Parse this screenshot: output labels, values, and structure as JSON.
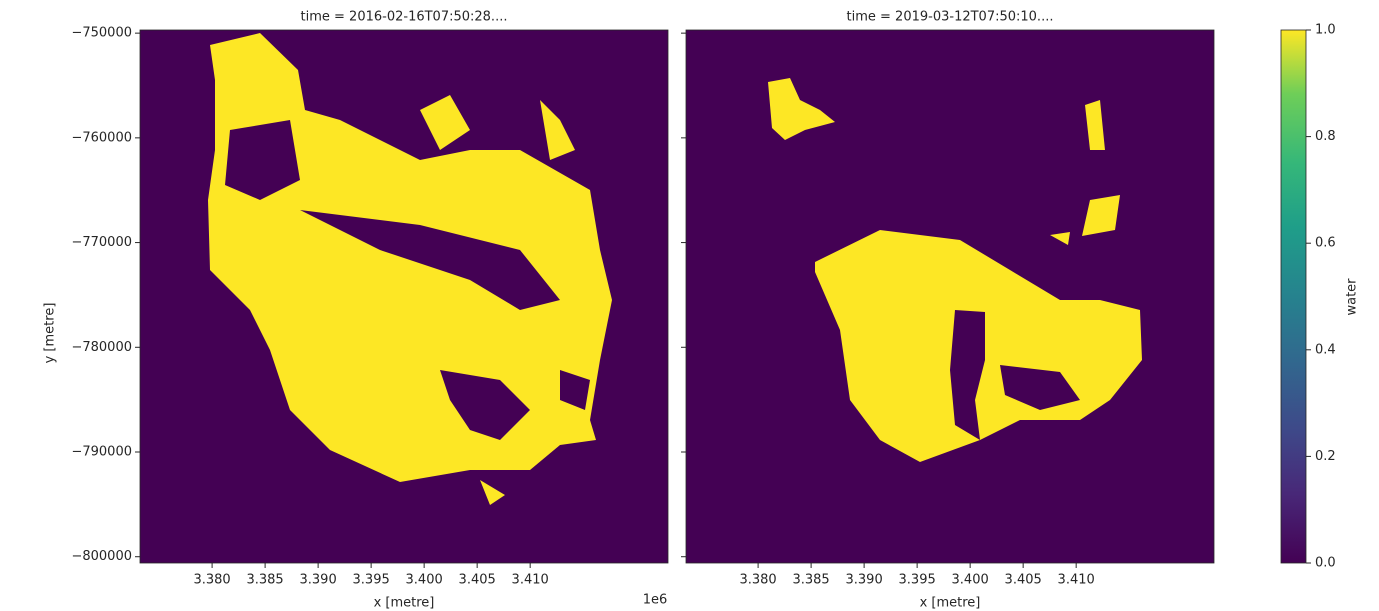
{
  "chart_data": [
    {
      "type": "image",
      "title": "time = 2016-02-16T07:50:28....",
      "xlabel": "x [metre]",
      "ylabel": "y [metre]",
      "x_offset_label": "1e6",
      "xlim": [
        3.3732,
        3.423
      ],
      "ylim": [
        -800600,
        -749700
      ],
      "xticks": [
        {
          "value": 3.38,
          "label": "3.380"
        },
        {
          "value": 3.385,
          "label": "3.385"
        },
        {
          "value": 3.39,
          "label": "3.390"
        },
        {
          "value": 3.395,
          "label": "3.395"
        },
        {
          "value": 3.4,
          "label": "3.400"
        },
        {
          "value": 3.405,
          "label": "3.405"
        },
        {
          "value": 3.41,
          "label": "3.410"
        }
      ],
      "yticks": [
        {
          "value": -750000,
          "label": "−750000"
        },
        {
          "value": -760000,
          "label": "−760000"
        },
        {
          "value": -770000,
          "label": "−770000"
        },
        {
          "value": -780000,
          "label": "−780000"
        },
        {
          "value": -790000,
          "label": "−790000"
        },
        {
          "value": -800000,
          "label": "−800000"
        }
      ]
    },
    {
      "type": "image",
      "title": "time = 2019-03-12T07:50:10....",
      "xlabel": "x [metre]",
      "xlim": [
        3.3732,
        3.423
      ],
      "ylim": [
        -800600,
        -749700
      ],
      "xticks": [
        {
          "value": 3.38,
          "label": "3.380"
        },
        {
          "value": 3.385,
          "label": "3.385"
        },
        {
          "value": 3.39,
          "label": "3.390"
        },
        {
          "value": 3.395,
          "label": "3.395"
        },
        {
          "value": 3.4,
          "label": "3.400"
        },
        {
          "value": 3.405,
          "label": "3.405"
        },
        {
          "value": 3.41,
          "label": "3.410"
        }
      ],
      "yticks": [
        -750000,
        -760000,
        -770000,
        -780000,
        -790000,
        -800000
      ]
    }
  ],
  "colorbar": {
    "label": "water",
    "lim": [
      0,
      1
    ],
    "ticks": [
      {
        "value": 0,
        "label": "0.0"
      },
      {
        "value": 0.2,
        "label": "0.2"
      },
      {
        "value": 0.4,
        "label": "0.4"
      },
      {
        "value": 0.6,
        "label": "0.6"
      },
      {
        "value": 0.8,
        "label": "0.8"
      },
      {
        "value": 1,
        "label": "1.0"
      }
    ]
  }
}
